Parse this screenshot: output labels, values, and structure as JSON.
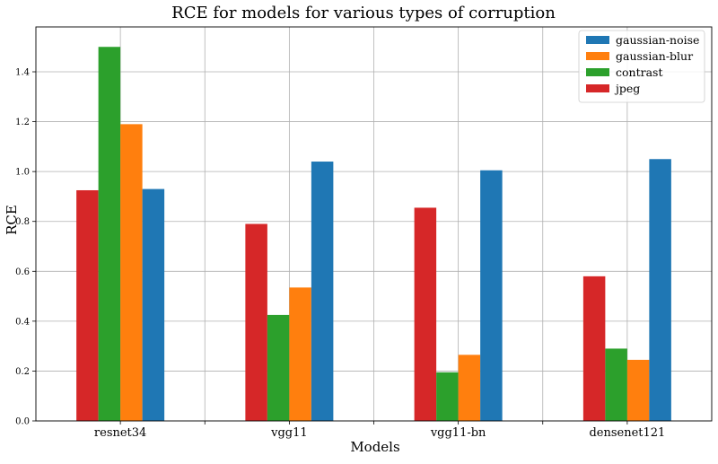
{
  "chart_data": {
    "type": "bar",
    "title": "RCE for models for various types of corruption",
    "xlabel": "Models",
    "ylabel": "RCE",
    "categories": [
      "resnet34",
      "vgg11",
      "vgg11-bn",
      "densenet121"
    ],
    "ylim": [
      0,
      1.58
    ],
    "yticks": [
      "0.0",
      "0.2",
      "0.4",
      "0.6",
      "0.8",
      "1.0",
      "1.2",
      "1.4"
    ],
    "grid": true,
    "legend_position": "top-right",
    "series": [
      {
        "name": "gaussian-noise",
        "color": "#1f77b4",
        "values": [
          0.93,
          1.04,
          1.005,
          1.05
        ]
      },
      {
        "name": "gaussian-blur",
        "color": "#ff7f0e",
        "values": [
          1.19,
          0.535,
          0.265,
          0.245
        ]
      },
      {
        "name": "contrast",
        "color": "#2ca02c",
        "values": [
          1.5,
          0.425,
          0.195,
          0.29
        ]
      },
      {
        "name": "jpeg",
        "color": "#d62728",
        "values": [
          0.925,
          0.79,
          0.855,
          0.58
        ]
      }
    ],
    "bar_order": [
      "jpeg",
      "contrast",
      "gaussian-blur",
      "gaussian-noise"
    ]
  }
}
